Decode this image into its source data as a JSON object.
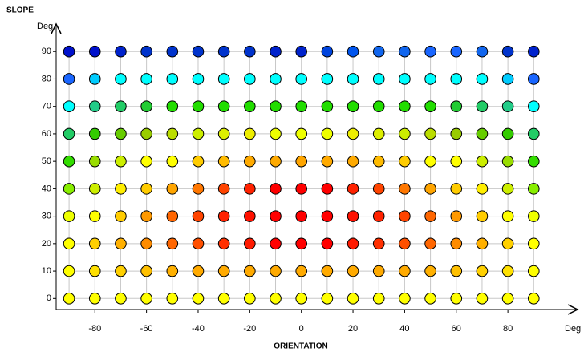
{
  "chart_data": {
    "type": "scatter",
    "y_label": "SLOPE",
    "y_unit": "Deg",
    "x_label": "ORIENTATION",
    "x_unit": "Deg",
    "x": [
      -90,
      -80,
      -70,
      -60,
      -50,
      -40,
      -30,
      -20,
      -10,
      0,
      10,
      20,
      30,
      40,
      50,
      60,
      70,
      80,
      90
    ],
    "rows": [
      {
        "y": 0,
        "colors": [
          "#ffff00",
          "#ffff00",
          "#ffff00",
          "#ffff00",
          "#ffff00",
          "#ffff00",
          "#ffff00",
          "#ffff00",
          "#ffff00",
          "#ffff00",
          "#ffff00",
          "#ffff00",
          "#ffff00",
          "#ffff00",
          "#ffff00",
          "#ffff00",
          "#ffff00",
          "#ffff00",
          "#ffff00"
        ]
      },
      {
        "y": 10,
        "colors": [
          "#ffff00",
          "#ffe000",
          "#ffd000",
          "#ffc000",
          "#ffb000",
          "#ffaa00",
          "#ffaa00",
          "#ffaa00",
          "#ffaa00",
          "#ffaa00",
          "#ffaa00",
          "#ffaa00",
          "#ffaa00",
          "#ffaa00",
          "#ffb000",
          "#ffc000",
          "#ffd000",
          "#ffe000",
          "#ffff00"
        ]
      },
      {
        "y": 20,
        "colors": [
          "#ffff00",
          "#ffd000",
          "#ffb000",
          "#ff8c00",
          "#ff6600",
          "#ff5000",
          "#ff3000",
          "#ff1a00",
          "#ff0000",
          "#ff0000",
          "#ff0000",
          "#ff1a00",
          "#ff3000",
          "#ff5000",
          "#ff6600",
          "#ff8c00",
          "#ffb000",
          "#ffd000",
          "#ffff00"
        ]
      },
      {
        "y": 30,
        "colors": [
          "#eeff00",
          "#ffff00",
          "#ffcc00",
          "#ff9900",
          "#ff6600",
          "#ff4400",
          "#ff2200",
          "#ff1100",
          "#ff0000",
          "#ff0000",
          "#ff0000",
          "#ff1100",
          "#ff2200",
          "#ff4400",
          "#ff6600",
          "#ff9900",
          "#ffcc00",
          "#ffff00",
          "#eeff00"
        ]
      },
      {
        "y": 40,
        "colors": [
          "#88ee00",
          "#ccee00",
          "#ffee00",
          "#ffcc00",
          "#ffa500",
          "#ff7700",
          "#ff4400",
          "#ff2200",
          "#ff0000",
          "#ff0000",
          "#ff0000",
          "#ff2200",
          "#ff4400",
          "#ff7700",
          "#ffa500",
          "#ffcc00",
          "#ffee00",
          "#ccee00",
          "#88ee00"
        ]
      },
      {
        "y": 50,
        "colors": [
          "#33dd00",
          "#99dd00",
          "#ccee00",
          "#ffff00",
          "#ffff00",
          "#ffcc00",
          "#ffbb00",
          "#ffaa00",
          "#ffaa00",
          "#ffa500",
          "#ffaa00",
          "#ffaa00",
          "#ffbb00",
          "#ffcc00",
          "#ffff00",
          "#ffff00",
          "#ccee00",
          "#99dd00",
          "#33dd00"
        ]
      },
      {
        "y": 60,
        "colors": [
          "#22cc66",
          "#33cc00",
          "#66cc00",
          "#99cc00",
          "#bbdd00",
          "#ccee00",
          "#ddee00",
          "#eeee00",
          "#eeff00",
          "#eeff00",
          "#eeff00",
          "#eeee00",
          "#ddee00",
          "#ccee00",
          "#bbdd00",
          "#99cc00",
          "#66cc00",
          "#33cc00",
          "#22cc66"
        ]
      },
      {
        "y": 70,
        "colors": [
          "#00ffff",
          "#22cc88",
          "#22cc66",
          "#22cc33",
          "#22dd00",
          "#22dd00",
          "#22dd00",
          "#22dd00",
          "#22dd00",
          "#22dd00",
          "#22dd00",
          "#22dd00",
          "#22dd00",
          "#22dd00",
          "#22dd00",
          "#22cc33",
          "#22cc66",
          "#22cc88",
          "#00ffff"
        ]
      },
      {
        "y": 80,
        "colors": [
          "#1a66ff",
          "#00ccff",
          "#00ffff",
          "#00ffff",
          "#00ffff",
          "#00ffff",
          "#00ffff",
          "#00ffff",
          "#00ffff",
          "#00ffff",
          "#00ffff",
          "#00ffff",
          "#00ffff",
          "#00ffff",
          "#00ffff",
          "#00ffff",
          "#00ffff",
          "#00ccff",
          "#1a66ff"
        ]
      },
      {
        "y": 90,
        "colors": [
          "#0011cc",
          "#0011cc",
          "#0022cc",
          "#0033cc",
          "#0033cc",
          "#0033cc",
          "#0033cc",
          "#0033cc",
          "#0022cc",
          "#0022cc",
          "#0044dd",
          "#0055ee",
          "#1166ee",
          "#1166ee",
          "#1a66ff",
          "#1a66ff",
          "#1166ee",
          "#0033cc",
          "#0022cc"
        ]
      }
    ],
    "xlim": [
      -95,
      107
    ],
    "ylim": [
      -4,
      100
    ],
    "xticks": [
      -80,
      -60,
      -40,
      -20,
      0,
      20,
      40,
      60,
      80
    ],
    "yticks": [
      0,
      10,
      20,
      30,
      40,
      50,
      60,
      70,
      80,
      90
    ],
    "grid": true
  }
}
